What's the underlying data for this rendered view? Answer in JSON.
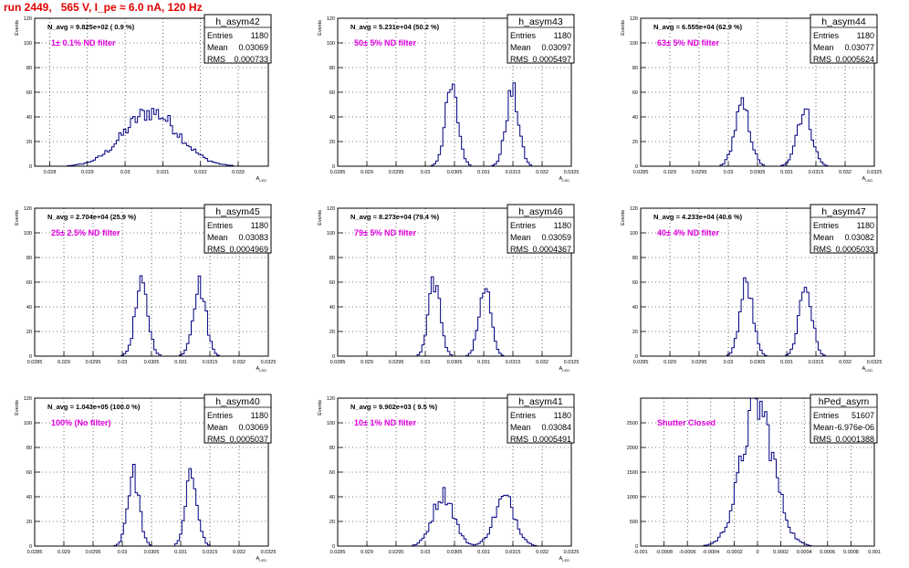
{
  "header": {
    "title": "run 2449,   565 V, I_pe ≈ 6.0 nA, 120 Hz"
  },
  "colors": {
    "histogram": "#000080",
    "title": "#e00000",
    "annotation": "#e000e0",
    "grid": "#000000"
  },
  "chart_data": [
    {
      "type": "bar",
      "name": "h_asym42",
      "navg": "N_avg = 9.825e+02 ( 0.9 %)",
      "note": "1± 0.1% ND filter",
      "ylabel": "Events",
      "xlabel": "A_LED",
      "stats": {
        "entries": "1180",
        "mean": "0.03069",
        "rms": "0.000733"
      },
      "xlim": [
        0.0276,
        0.0338
      ],
      "ylim": [
        0,
        120
      ],
      "xticks": [
        0.028,
        0.029,
        0.03,
        0.031,
        0.032,
        0.033
      ],
      "xticklabels": [
        "0.028",
        "0.029",
        "0.03",
        "0.031",
        "0.032",
        "0.033"
      ],
      "yticks": [
        0,
        20,
        40,
        60,
        80,
        100,
        120
      ],
      "peaks": [
        {
          "mu": 0.03069,
          "sigma": 0.00073,
          "amp": 44
        }
      ]
    },
    {
      "type": "bar",
      "name": "h_asym43",
      "navg": "N_avg = 5.231e+04 (50.2 %)",
      "note": "50± 5% ND filter",
      "ylabel": "Events",
      "xlabel": "A_LED",
      "stats": {
        "entries": "1180",
        "mean": "0.03097",
        "rms": "0.0005497"
      },
      "xlim": [
        0.0285,
        0.0325
      ],
      "ylim": [
        0,
        120
      ],
      "xticks": [
        0.0285,
        0.029,
        0.0295,
        0.03,
        0.0305,
        0.031,
        0.0315,
        0.032,
        0.0325
      ],
      "xticklabels": [
        "0.0285",
        "0.029",
        "0.0295",
        "0.03",
        "0.0305",
        "0.031",
        "0.0315",
        "0.032",
        "0.0325"
      ],
      "yticks": [
        0,
        20,
        40,
        60,
        80,
        100,
        120
      ],
      "peaks": [
        {
          "mu": 0.03045,
          "sigma": 0.00011,
          "amp": 62
        },
        {
          "mu": 0.03149,
          "sigma": 0.00011,
          "amp": 60
        }
      ]
    },
    {
      "type": "bar",
      "name": "h_asym44",
      "navg": "N_avg = 6.555e+04 (62.9 %)",
      "note": "63± 5% ND filter",
      "ylabel": "Events",
      "xlabel": "A_LED",
      "stats": {
        "entries": "1180",
        "mean": "0.03077",
        "rms": "0.0005624"
      },
      "xlim": [
        0.0285,
        0.0325
      ],
      "ylim": [
        0,
        120
      ],
      "xticks": [
        0.0285,
        0.029,
        0.0295,
        0.03,
        0.0305,
        0.031,
        0.0315,
        0.032,
        0.0325
      ],
      "xticklabels": [
        "0.0285",
        "0.029",
        "0.0295",
        "0.03",
        "0.0305",
        "0.031",
        "0.0315",
        "0.032",
        "0.0325"
      ],
      "yticks": [
        0,
        20,
        40,
        60,
        80,
        100,
        120
      ],
      "peaks": [
        {
          "mu": 0.03024,
          "sigma": 0.00013,
          "amp": 48
        },
        {
          "mu": 0.0313,
          "sigma": 0.00013,
          "amp": 45
        }
      ]
    },
    {
      "type": "bar",
      "name": "h_asym45",
      "navg": "N_avg = 2.704e+04 (25.9 %)",
      "note": "25± 2.5% ND filter",
      "ylabel": "Events",
      "xlabel": "A_LED",
      "stats": {
        "entries": "1180",
        "mean": "0.03083",
        "rms": "0.0004969"
      },
      "xlim": [
        0.0285,
        0.0325
      ],
      "ylim": [
        0,
        120
      ],
      "xticks": [
        0.0285,
        0.029,
        0.0295,
        0.03,
        0.0305,
        0.031,
        0.0315,
        0.032,
        0.0325
      ],
      "xticklabels": [
        "0.0285",
        "0.029",
        "0.0295",
        "0.03",
        "0.0305",
        "0.031",
        "0.0315",
        "0.032",
        "0.0325"
      ],
      "yticks": [
        0,
        20,
        40,
        60,
        80,
        100,
        120
      ],
      "peaks": [
        {
          "mu": 0.03033,
          "sigma": 0.00011,
          "amp": 56
        },
        {
          "mu": 0.03132,
          "sigma": 0.00011,
          "amp": 58
        }
      ]
    },
    {
      "type": "bar",
      "name": "h_asym46",
      "navg": "N_avg = 8.273e+04 (79.4 %)",
      "note": "79± 5% ND filter",
      "ylabel": "Events",
      "xlabel": "A_LED",
      "stats": {
        "entries": "1180",
        "mean": "0.03059",
        "rms": "0.0004367"
      },
      "xlim": [
        0.0285,
        0.0325
      ],
      "ylim": [
        0,
        120
      ],
      "xticks": [
        0.0285,
        0.029,
        0.0295,
        0.03,
        0.0305,
        0.031,
        0.0315,
        0.032,
        0.0325
      ],
      "xticklabels": [
        "0.0285",
        "0.029",
        "0.0295",
        "0.03",
        "0.0305",
        "0.031",
        "0.0315",
        "0.032",
        "0.0325"
      ],
      "yticks": [
        0,
        20,
        40,
        60,
        80,
        100,
        120
      ],
      "peaks": [
        {
          "mu": 0.03016,
          "sigma": 0.0001,
          "amp": 60
        },
        {
          "mu": 0.03102,
          "sigma": 0.0001,
          "amp": 58
        }
      ]
    },
    {
      "type": "bar",
      "name": "h_asym47",
      "navg": "N_avg = 4.233e+04 (40.6 %)",
      "note": "40± 4% ND filter",
      "ylabel": "Events",
      "xlabel": "A_LED",
      "stats": {
        "entries": "1180",
        "mean": "0.03082",
        "rms": "0.0005033"
      },
      "xlim": [
        0.0285,
        0.0325
      ],
      "ylim": [
        0,
        120
      ],
      "xticks": [
        0.0285,
        0.029,
        0.0295,
        0.03,
        0.0305,
        0.031,
        0.0315,
        0.032,
        0.0325
      ],
      "xticklabels": [
        "0.0285",
        "0.029",
        "0.0295",
        "0.03",
        "0.0305",
        "0.031",
        "0.0315",
        "0.032",
        "0.0325"
      ],
      "yticks": [
        0,
        20,
        40,
        60,
        80,
        100,
        120
      ],
      "peaks": [
        {
          "mu": 0.03031,
          "sigma": 0.00011,
          "amp": 58
        },
        {
          "mu": 0.03132,
          "sigma": 0.00011,
          "amp": 57
        }
      ]
    },
    {
      "type": "bar",
      "name": "h_asym40",
      "navg": "N_avg = 1.043e+05 (100.0 %)",
      "note": "100% (No filter)",
      "ylabel": "Events",
      "xlabel": "A_LED",
      "stats": {
        "entries": "1180",
        "mean": "0.03069",
        "rms": "0.0005037"
      },
      "xlim": [
        0.0285,
        0.0325
      ],
      "ylim": [
        0,
        120
      ],
      "xticks": [
        0.0285,
        0.029,
        0.0295,
        0.03,
        0.0305,
        0.031,
        0.0315,
        0.032,
        0.0325
      ],
      "xticklabels": [
        "0.0285",
        "0.029",
        "0.0295",
        "0.03",
        "0.0305",
        "0.031",
        "0.0315",
        "0.032",
        "0.0325"
      ],
      "yticks": [
        0,
        20,
        40,
        60,
        80,
        100,
        120
      ],
      "peaks": [
        {
          "mu": 0.03019,
          "sigma": 0.0001,
          "amp": 58
        },
        {
          "mu": 0.03119,
          "sigma": 0.0001,
          "amp": 58
        }
      ]
    },
    {
      "type": "bar",
      "name": "h_asym41",
      "navg": "N_avg = 9.902e+03 ( 9.5 %)",
      "note": "10± 1% ND filter",
      "ylabel": "Events",
      "xlabel": "A_LED",
      "stats": {
        "entries": "1180",
        "mean": "0.03084",
        "rms": "0.0005491"
      },
      "xlim": [
        0.0285,
        0.0325
      ],
      "ylim": [
        0,
        120
      ],
      "xticks": [
        0.0285,
        0.029,
        0.0295,
        0.03,
        0.0305,
        0.031,
        0.0315,
        0.032,
        0.0325
      ],
      "xticklabels": [
        "0.0285",
        "0.029",
        "0.0295",
        "0.03",
        "0.0305",
        "0.031",
        "0.0315",
        "0.032",
        "0.0325"
      ],
      "yticks": [
        0,
        20,
        40,
        60,
        80,
        100,
        120
      ],
      "peaks": [
        {
          "mu": 0.03031,
          "sigma": 0.00018,
          "amp": 42
        },
        {
          "mu": 0.03136,
          "sigma": 0.00018,
          "amp": 39
        }
      ]
    },
    {
      "type": "bar",
      "name": "hPed_asym",
      "navg": "",
      "note": "Shutter Closed",
      "ylabel": "",
      "xlabel": "",
      "stats": {
        "entries": "51607",
        "mean": "-6.976e-06",
        "rms": "0.0001388"
      },
      "xlim": [
        -0.001,
        0.001
      ],
      "ylim": [
        0,
        3000
      ],
      "xticks": [
        -0.001,
        -0.0008,
        -0.0006,
        -0.0004,
        -0.0002,
        0,
        0.0002,
        0.0004,
        0.0006,
        0.0008,
        0.001
      ],
      "xticklabels": [
        "-0.001",
        "-0.0008",
        "-0.0006",
        "-0.0004",
        "-0.0002",
        "0",
        "0.0002",
        "0.0004",
        "0.0006",
        "0.0008",
        "0.001"
      ],
      "yticks": [
        0,
        500,
        1000,
        1500,
        2000,
        2500
      ],
      "peaks": [
        {
          "mu": 0,
          "sigma": 0.000139,
          "amp": 2850
        }
      ]
    }
  ]
}
